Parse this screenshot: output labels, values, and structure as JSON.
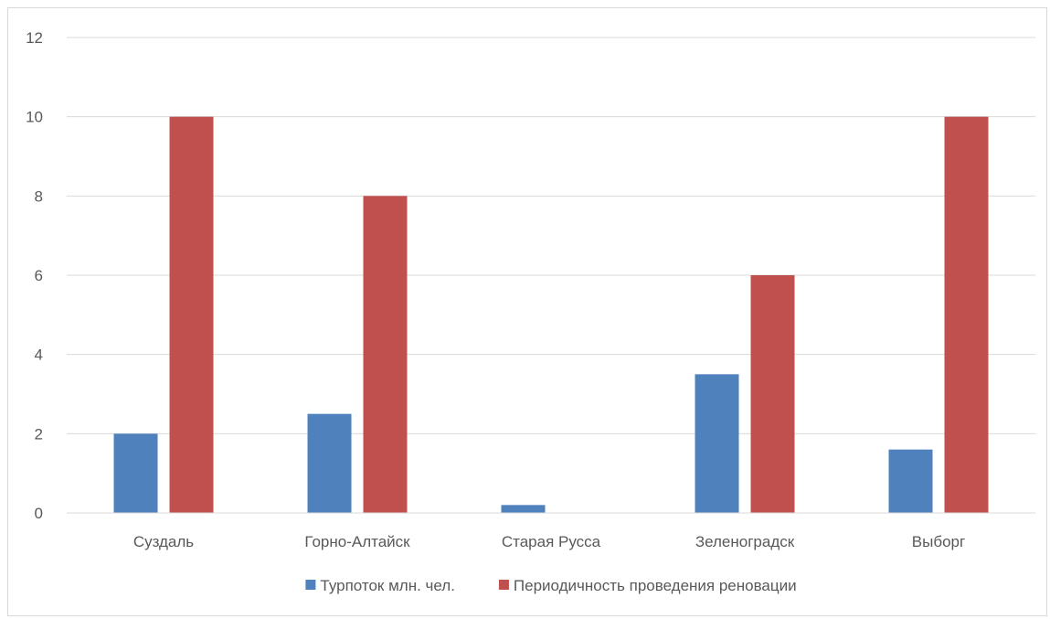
{
  "chart_data": {
    "type": "bar",
    "categories": [
      "Суздаль",
      "Горно-Алтайск",
      "Старая Русса",
      "Зеленоградск",
      "Выборг"
    ],
    "series": [
      {
        "name": "Турпоток млн. чел.",
        "color": "#4f81bd",
        "values": [
          2,
          2.5,
          0.2,
          3.5,
          1.6
        ]
      },
      {
        "name": "Периодичность проведения реновации",
        "color": "#c0504d",
        "values": [
          10,
          8,
          0,
          6,
          10
        ]
      }
    ],
    "ylim": [
      0,
      12
    ],
    "yticks": [
      "0",
      "2",
      "4",
      "6",
      "8",
      "10",
      "12"
    ],
    "grid": true,
    "legend_position": "bottom"
  }
}
